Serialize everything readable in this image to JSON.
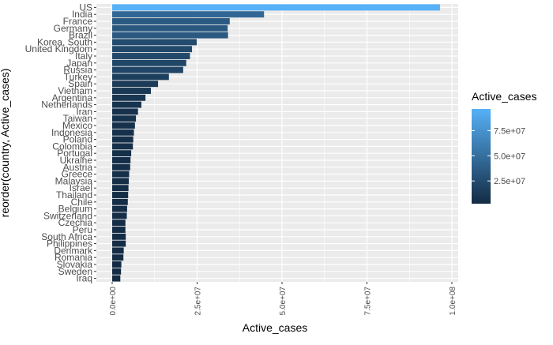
{
  "chart_data": {
    "type": "bar",
    "orientation": "horizontal",
    "xlabel": "Active_cases",
    "ylabel": "reorder(country, Active_cases)",
    "xlim": [
      0,
      100000000
    ],
    "x_ticks": [
      0,
      25000000,
      50000000,
      75000000,
      100000000
    ],
    "x_tick_labels": [
      "0.0e+00",
      "2.5e+07",
      "5.0e+07",
      "7.5e+07",
      "1.0e+08"
    ],
    "grid": true,
    "panel_background": "#ebebeb",
    "categories": [
      "US",
      "India",
      "France",
      "Germany",
      "Brazil",
      "Korea, South",
      "United Kingdom",
      "Italy",
      "Japan",
      "Russia",
      "Turkey",
      "Spain",
      "Vietnam",
      "Argentina",
      "Netherlands",
      "Iran",
      "Taiwan",
      "Mexico",
      "Indonesia",
      "Poland",
      "Colombia",
      "Portugal",
      "Ukraine",
      "Austria",
      "Greece",
      "Malaysia",
      "Israel",
      "Thailand",
      "Chile",
      "Belgium",
      "Switzerland",
      "Czechia",
      "Peru",
      "South Africa",
      "Philippines",
      "Denmark",
      "Romania",
      "Slovakia",
      "Sweden",
      "Iraq"
    ],
    "values": [
      96500000,
      44700000,
      34600000,
      34000000,
      34100000,
      24900000,
      23500000,
      22900000,
      21800000,
      20900000,
      16700000,
      13500000,
      11400000,
      9800000,
      8600000,
      7600000,
      7000000,
      6700000,
      6400000,
      6200000,
      6100000,
      5600000,
      5400000,
      5300000,
      5000000,
      4900000,
      4800000,
      4700000,
      4600000,
      4400000,
      4300000,
      3900000,
      3900000,
      4000000,
      4000000,
      3400000,
      3300000,
      2700000,
      2600000,
      2400000
    ],
    "legend": {
      "title": "Active_cases",
      "position": "right",
      "ticks": [
        25000000,
        50000000,
        75000000
      ],
      "tick_labels": [
        "2.5e+07",
        "5.0e+07",
        "7.5e+07"
      ],
      "color_low": "#132b43",
      "color_high": "#56b1f7"
    }
  }
}
